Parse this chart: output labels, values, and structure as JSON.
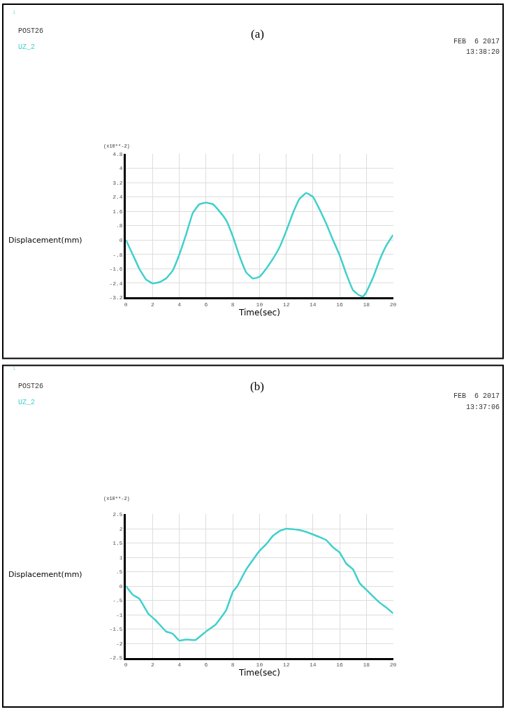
{
  "chart_data": [
    {
      "type": "line",
      "title": "(a)",
      "xlabel": "Time(sec)",
      "ylabel": "Displacement(mm)",
      "annotations": [
        "1",
        "POST26",
        "FEB  6 2017",
        "13:38:20",
        "(x10**-2)"
      ],
      "x": [
        0,
        0.5,
        1,
        1.5,
        2,
        2.5,
        3,
        3.5,
        4,
        4.5,
        5,
        5.5,
        6,
        6.5,
        7,
        7.5,
        8,
        8.5,
        9,
        9.5,
        10,
        10.5,
        11,
        11.5,
        12,
        12.5,
        13,
        13.5,
        14,
        14.5,
        15,
        15.5,
        16,
        16.5,
        17,
        17.5,
        17.75,
        18,
        18.5,
        19,
        19.5,
        20
      ],
      "series": [
        {
          "name": "UZ_2",
          "color": "#40d0cc",
          "values": [
            0,
            -0.8,
            -1.6,
            -2.2,
            -2.42,
            -2.35,
            -2.15,
            -1.7,
            -0.8,
            0.3,
            1.5,
            2.0,
            2.08,
            2.0,
            1.6,
            1.1,
            0.2,
            -0.9,
            -1.8,
            -2.15,
            -2.05,
            -1.6,
            -1.05,
            -0.4,
            0.5,
            1.5,
            2.3,
            2.62,
            2.4,
            1.7,
            0.9,
            0.0,
            -0.85,
            -1.9,
            -2.8,
            -3.1,
            -3.15,
            -2.9,
            -2.1,
            -1.1,
            -0.3,
            0.28
          ]
        }
      ],
      "xlim": [
        0,
        20
      ],
      "xticks": [
        0,
        2,
        4,
        6,
        8,
        10,
        12,
        14,
        16,
        18,
        20
      ],
      "ylim": [
        -3.2,
        4.8
      ],
      "yticks": [
        {
          "value": -3.2,
          "label": "-3.2"
        },
        {
          "value": -2.4,
          "label": "-2.4"
        },
        {
          "value": -1.6,
          "label": "-1.6"
        },
        {
          "value": -0.8,
          "label": "-.8"
        },
        0,
        {
          "value": 0.8,
          "label": ".8"
        },
        {
          "value": 1.6,
          "label": "1.6"
        },
        {
          "value": 2.4,
          "label": "2.4"
        },
        {
          "value": 3.2,
          "label": "3.2"
        },
        4,
        {
          "value": 4.8,
          "label": "4.8"
        }
      ],
      "grid": true
    },
    {
      "type": "line",
      "title": "(b)",
      "xlabel": "Time(sec)",
      "ylabel": "Displacement(mm)",
      "annotations": [
        "1",
        "POST26",
        "FEB  6 2017",
        "13:37:06",
        "(x10**-2)"
      ],
      "x": [
        0,
        0.5,
        1,
        1.7,
        2.2,
        3,
        3.5,
        4,
        4.5,
        5.2,
        6,
        6.7,
        7.5,
        8,
        8.34,
        9,
        10,
        10.5,
        11,
        11.5,
        12,
        12.5,
        13,
        14,
        15,
        15.5,
        16,
        16.5,
        17,
        17.5,
        18,
        18.5,
        19,
        19.5,
        20
      ],
      "series": [
        {
          "name": "UZ_2",
          "color": "#40d0cc",
          "values": [
            0,
            -0.3,
            -0.44,
            -0.98,
            -1.18,
            -1.58,
            -1.66,
            -1.9,
            -1.86,
            -1.88,
            -1.58,
            -1.35,
            -0.84,
            -0.2,
            0,
            0.58,
            1.23,
            1.46,
            1.75,
            1.92,
            2.0,
            1.98,
            1.95,
            1.8,
            1.6,
            1.35,
            1.17,
            0.78,
            0.58,
            0.1,
            -0.13,
            -0.36,
            -0.58,
            -0.75,
            -0.95
          ]
        }
      ],
      "xlim": [
        0,
        20
      ],
      "xticks": [
        0,
        2,
        4,
        6,
        8,
        10,
        12,
        14,
        16,
        18,
        20
      ],
      "ylim": [
        -2.5,
        2.5
      ],
      "yticks": [
        {
          "value": -2.5,
          "label": "-2.5"
        },
        -2,
        {
          "value": -1.5,
          "label": "-1.5"
        },
        -1,
        {
          "value": -0.5,
          "label": "-.5"
        },
        0,
        {
          "value": 0.5,
          "label": ".5"
        },
        1,
        {
          "value": 1.5,
          "label": "1.5"
        },
        2,
        {
          "value": 2.5,
          "label": "2.5"
        }
      ],
      "grid": true
    }
  ]
}
